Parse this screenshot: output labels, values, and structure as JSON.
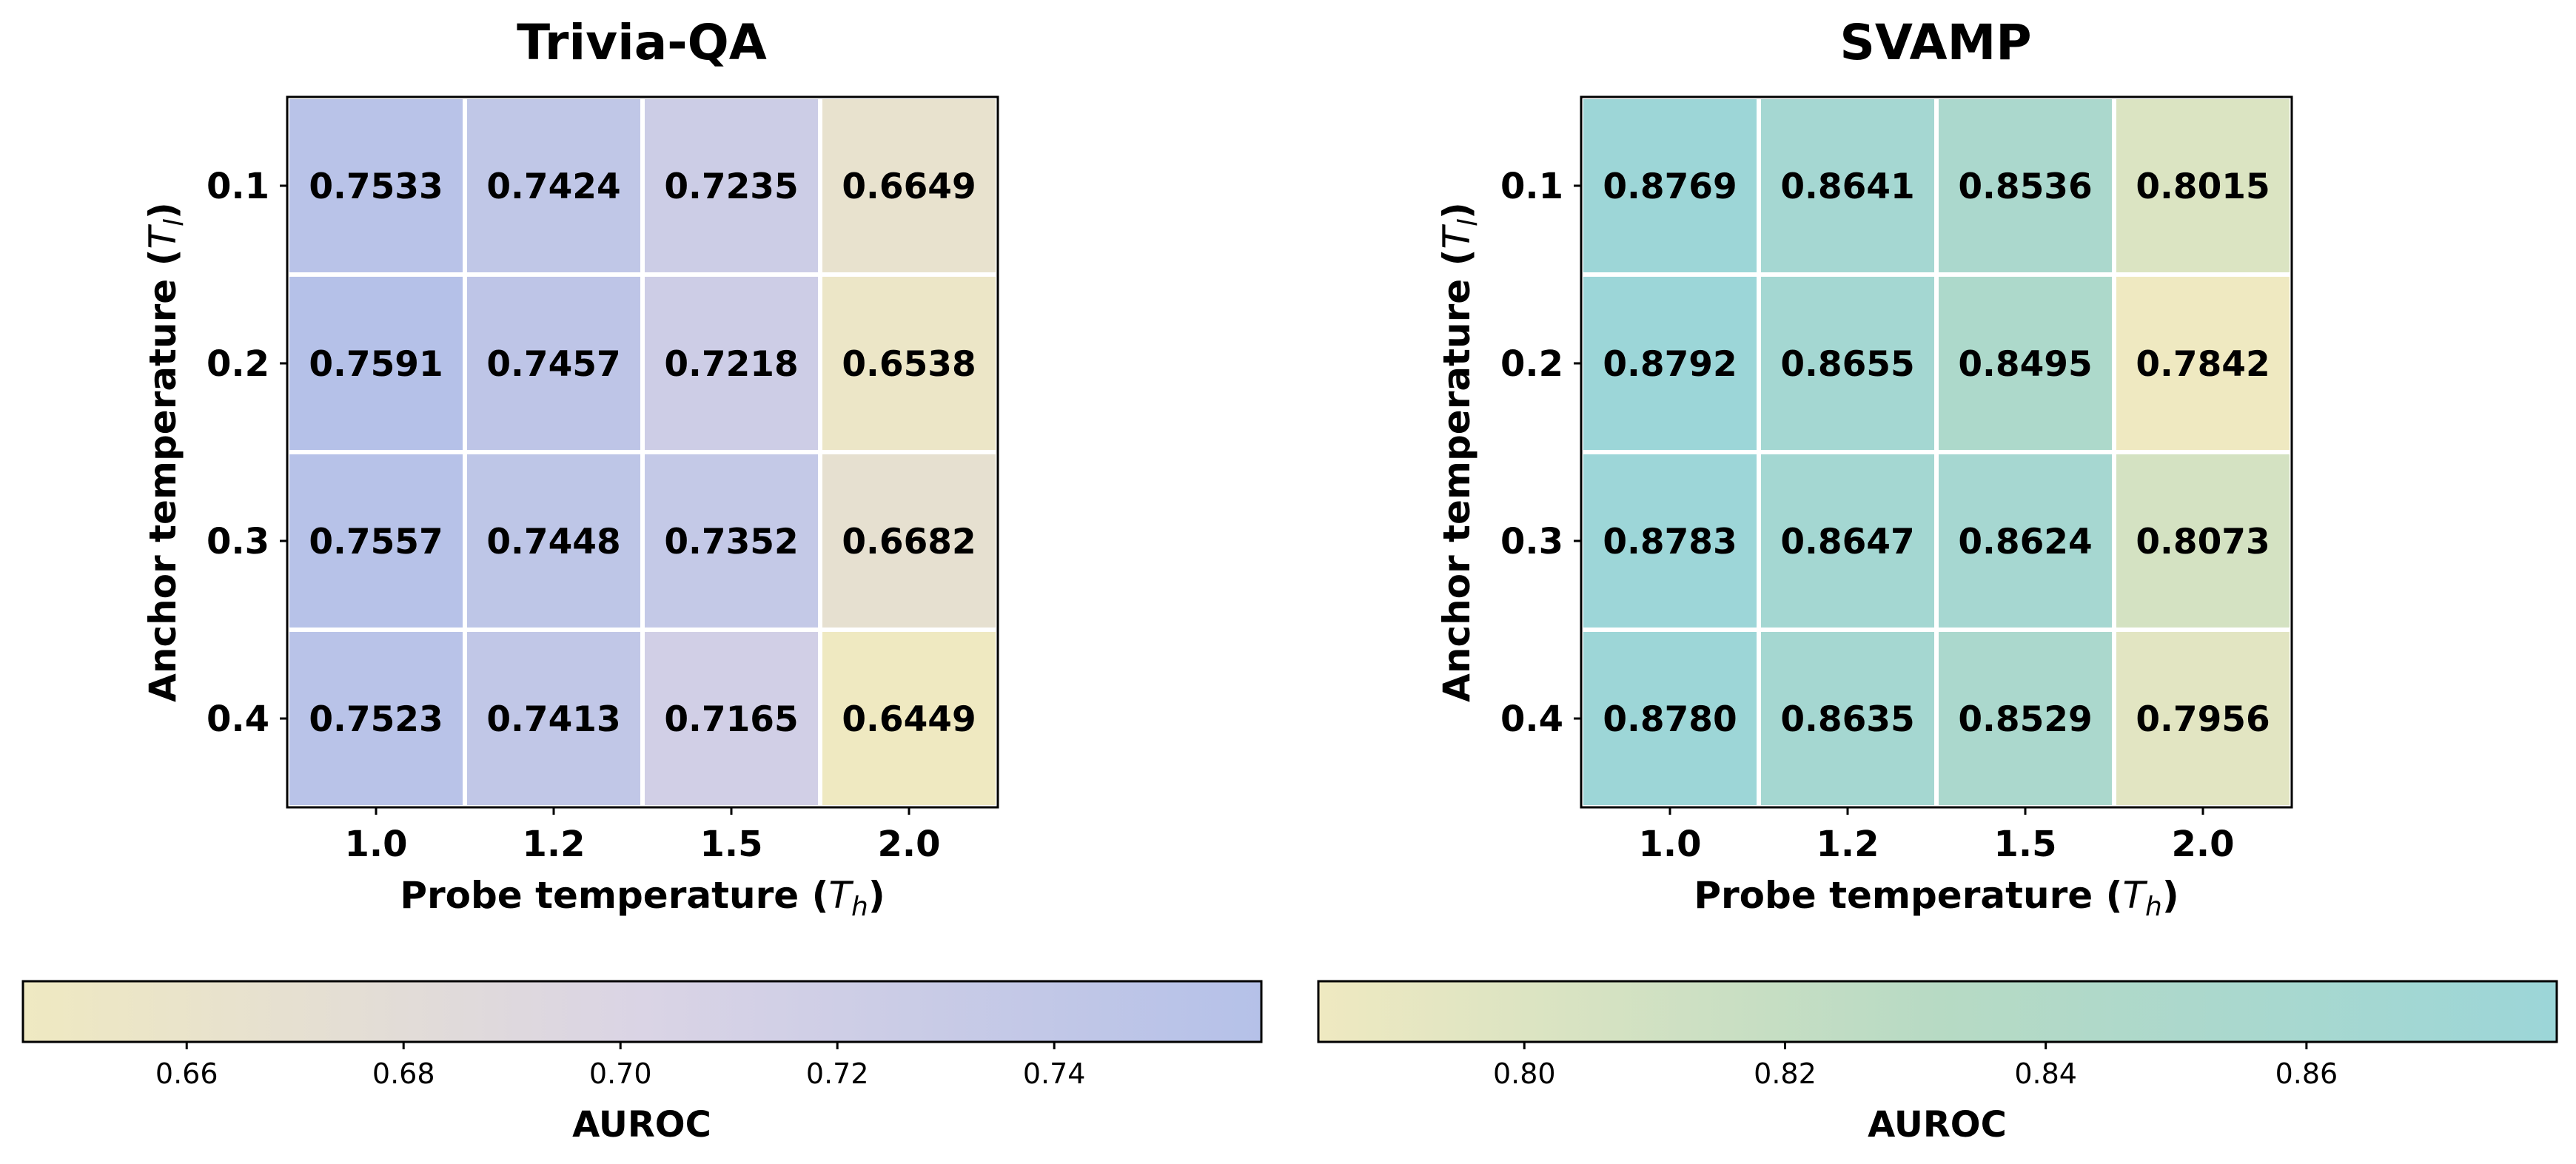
{
  "chart_data": [
    {
      "type": "heatmap",
      "title": "Trivia-QA",
      "xlabel_main": "Probe temperature (",
      "xlabel_var": "T",
      "xlabel_sub": "h",
      "xlabel_close": ")",
      "ylabel_main": "Anchor temperature (",
      "ylabel_var": "T",
      "ylabel_sub": "l",
      "ylabel_close": ")",
      "x": [
        "1.0",
        "1.2",
        "1.5",
        "2.0"
      ],
      "y": [
        "0.1",
        "0.2",
        "0.3",
        "0.4"
      ],
      "values": [
        [
          0.7533,
          0.7424,
          0.7235,
          0.6649
        ],
        [
          0.7591,
          0.7457,
          0.7218,
          0.6538
        ],
        [
          0.7557,
          0.7448,
          0.7352,
          0.6682
        ],
        [
          0.7523,
          0.7413,
          0.7165,
          0.6449
        ]
      ],
      "value_labels": [
        [
          "0.7533",
          "0.7424",
          "0.7235",
          "0.6649"
        ],
        [
          "0.7591",
          "0.7457",
          "0.7218",
          "0.6538"
        ],
        [
          "0.7557",
          "0.7448",
          "0.7352",
          "0.6682"
        ],
        [
          "0.7523",
          "0.7413",
          "0.7165",
          "0.6449"
        ]
      ],
      "colorbar": {
        "label": "AUROC",
        "vmin": 0.6449,
        "vmax": 0.7591,
        "ticks": [
          0.66,
          0.68,
          0.7,
          0.72,
          0.74
        ],
        "tick_labels": [
          "0.66",
          "0.68",
          "0.70",
          "0.72",
          "0.74"
        ],
        "color_low": "#efe9c1",
        "color_mid": "#dad4e5",
        "color_high": "#b5c1e8"
      }
    },
    {
      "type": "heatmap",
      "title": "SVAMP",
      "xlabel_main": "Probe temperature (",
      "xlabel_var": "T",
      "xlabel_sub": "h",
      "xlabel_close": ")",
      "ylabel_main": "Anchor temperature (",
      "ylabel_var": "T",
      "ylabel_sub": "l",
      "ylabel_close": ")",
      "x": [
        "1.0",
        "1.2",
        "1.5",
        "2.0"
      ],
      "y": [
        "0.1",
        "0.2",
        "0.3",
        "0.4"
      ],
      "values": [
        [
          0.8769,
          0.8641,
          0.8536,
          0.8015
        ],
        [
          0.8792,
          0.8655,
          0.8495,
          0.7842
        ],
        [
          0.8783,
          0.8647,
          0.8624,
          0.8073
        ],
        [
          0.878,
          0.8635,
          0.8529,
          0.7956
        ]
      ],
      "value_labels": [
        [
          "0.8769",
          "0.8641",
          "0.8536",
          "0.8015"
        ],
        [
          "0.8792",
          "0.8655",
          "0.8495",
          "0.7842"
        ],
        [
          "0.8783",
          "0.8647",
          "0.8624",
          "0.8073"
        ],
        [
          "0.8780",
          "0.8635",
          "0.8529",
          "0.7956"
        ]
      ],
      "colorbar": {
        "label": "AUROC",
        "vmin": 0.7842,
        "vmax": 0.8792,
        "ticks": [
          0.8,
          0.82,
          0.84,
          0.86
        ],
        "tick_labels": [
          "0.80",
          "0.82",
          "0.84",
          "0.86"
        ],
        "color_low": "#efe9c1",
        "color_mid": "#b7dac4",
        "color_high": "#9cd6d8"
      }
    }
  ]
}
